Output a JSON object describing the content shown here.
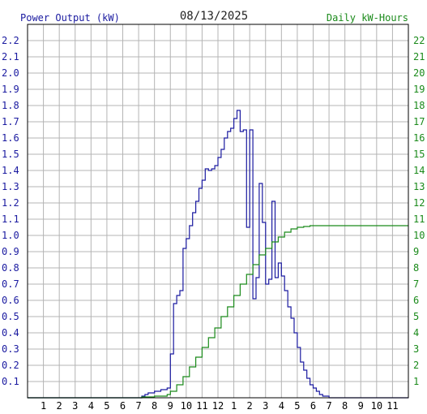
{
  "chart_data": {
    "type": "line",
    "title": "08/13/2025",
    "ylabel_left": "Power Output (kW)",
    "ylabel_right": "Daily kW-Hours",
    "xlabel": "",
    "x_tick_labels": [
      "1",
      "2",
      "3",
      "4",
      "5",
      "6",
      "7",
      "8",
      "9",
      "10",
      "11",
      "12",
      "1",
      "2",
      "3",
      "4",
      "5",
      "6",
      "7",
      "8",
      "9",
      "10",
      "11"
    ],
    "y_left_ticks": [
      "0.1",
      "0.2",
      "0.3",
      "0.4",
      "0.5",
      "0.6",
      "0.7",
      "0.8",
      "0.9",
      "1.0",
      "1.1",
      "1.2",
      "1.3",
      "1.4",
      "1.5",
      "1.6",
      "1.7",
      "1.8",
      "1.9",
      "2.0",
      "2.1",
      "2.2"
    ],
    "y_right_ticks": [
      "1",
      "2",
      "3",
      "4",
      "5",
      "6",
      "7",
      "8",
      "9",
      "10",
      "11",
      "12",
      "13",
      "14",
      "15",
      "16",
      "17",
      "18",
      "19",
      "20",
      "21",
      "22"
    ],
    "xlim": [
      0,
      24
    ],
    "ylim_left": [
      0,
      2.3
    ],
    "ylim_right": [
      0,
      23
    ],
    "grid": true,
    "colors": {
      "power": "#1a1aa0",
      "energy": "#1a8a1a",
      "grid": "#b4b4b4",
      "axis_left": "#1a1aa0",
      "axis_right": "#1a8a1a"
    },
    "series": [
      {
        "key": "power",
        "axis": "left",
        "step": true,
        "x": [
          0,
          7.2,
          7.4,
          7.6,
          7.8,
          8.0,
          8.2,
          8.4,
          8.6,
          8.8,
          9.0,
          9.2,
          9.4,
          9.6,
          9.8,
          10.0,
          10.2,
          10.4,
          10.6,
          10.8,
          11.0,
          11.2,
          11.4,
          11.6,
          11.8,
          12.0,
          12.2,
          12.4,
          12.6,
          12.8,
          13.0,
          13.2,
          13.4,
          13.6,
          13.8,
          14.0,
          14.2,
          14.4,
          14.6,
          14.8,
          15.0,
          15.2,
          15.4,
          15.6,
          15.8,
          16.0,
          16.2,
          16.4,
          16.6,
          16.8,
          17.0,
          17.2,
          17.4,
          17.6,
          17.8,
          18.0,
          18.2,
          18.4,
          18.6,
          18.8,
          19.0,
          19.2,
          19.4,
          19.6,
          19.8,
          20.0,
          20.2,
          20.4,
          20.6,
          20.8,
          21.0,
          21.2,
          21.4,
          24
        ],
        "y": [
          0,
          0.01,
          0.02,
          0.03,
          0.03,
          0.04,
          0.04,
          0.05,
          0.05,
          0.06,
          0.27,
          0.58,
          0.63,
          0.66,
          0.92,
          0.98,
          1.06,
          1.14,
          1.21,
          1.29,
          1.34,
          1.41,
          1.4,
          1.41,
          1.43,
          1.48,
          1.53,
          1.6,
          1.64,
          1.66,
          1.72,
          1.77,
          1.64,
          1.65,
          1.05,
          1.65,
          0.61,
          0.74,
          1.32,
          1.08,
          0.7,
          0.73,
          1.21,
          0.74,
          0.83,
          0.75,
          0.66,
          0.56,
          0.49,
          0.4,
          0.31,
          0.22,
          0.17,
          0.12,
          0.08,
          0.06,
          0.04,
          0.02,
          0.01,
          0.01,
          0.0,
          0.0,
          0.0,
          0.0,
          0.0,
          0.0,
          0.0,
          0.0,
          0.0,
          0.0,
          0.0,
          0.0,
          0.0,
          0.0
        ]
      },
      {
        "key": "energy",
        "axis": "right",
        "step": true,
        "x": [
          0,
          7.2,
          8.0,
          8.8,
          9.0,
          9.4,
          9.8,
          10.2,
          10.6,
          11.0,
          11.4,
          11.8,
          12.2,
          12.6,
          13.0,
          13.4,
          13.8,
          14.2,
          14.6,
          15.0,
          15.4,
          15.8,
          16.2,
          16.6,
          17.0,
          17.4,
          17.8,
          18.2,
          18.6,
          19.0,
          24
        ],
        "y": [
          0,
          0.05,
          0.1,
          0.2,
          0.4,
          0.8,
          1.3,
          1.9,
          2.5,
          3.1,
          3.7,
          4.3,
          5.0,
          5.6,
          6.3,
          7.0,
          7.6,
          8.2,
          8.8,
          9.2,
          9.6,
          9.9,
          10.2,
          10.4,
          10.5,
          10.55,
          10.6,
          10.6,
          10.6,
          10.6,
          10.6
        ]
      }
    ]
  }
}
